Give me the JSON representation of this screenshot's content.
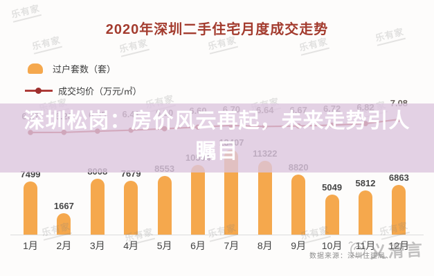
{
  "header": {
    "title": "2020年深圳二手住宅月度成交走势"
  },
  "legend": {
    "items": [
      {
        "label": "过户套数（套）",
        "swatch": "bar-swatch",
        "color": "#f5a84d"
      },
      {
        "label": "成交均价（万元/㎡）",
        "swatch": "line-swatch",
        "color": "#ad3b38"
      }
    ]
  },
  "overlay": {
    "headline": "深圳松岗：房价风云再起，未来走势引人瞩目",
    "headline_line1": "深圳松岗：房价风云再起，未来走势引人",
    "headline_line2": "瞩目"
  },
  "chart_data": {
    "type": "bar",
    "title": "2020年深圳二手住宅月度成交走势",
    "categories": [
      "1月",
      "2月",
      "3月",
      "4月",
      "5月",
      "6月",
      "7月",
      "8月",
      "9月",
      "10月",
      "11月",
      "12月"
    ],
    "series": [
      {
        "name": "过户套数（套）",
        "type": "bar",
        "values": [
          7499,
          1667,
          8008,
          7679,
          8553,
          10594,
          13407,
          11322,
          8820,
          5049,
          5812,
          6863
        ]
      },
      {
        "name": "成交均价（万元/㎡）",
        "type": "line",
        "values": [
          6.27,
          6.28,
          6.35,
          6.41,
          6.5,
          6.6,
          6.7,
          6.64,
          6.67,
          6.72,
          6.82,
          7.08
        ]
      }
    ],
    "bar_color": "#f5a84d",
    "line_color": "#ad3b38",
    "grid": false,
    "legend_position": "top-left",
    "xlabel": "",
    "ylabel": ""
  },
  "footer": {
    "source": "数据来源：深圳住建局、",
    "scribble_text": "义滑言"
  },
  "watermark": {
    "text": "乐有家"
  }
}
